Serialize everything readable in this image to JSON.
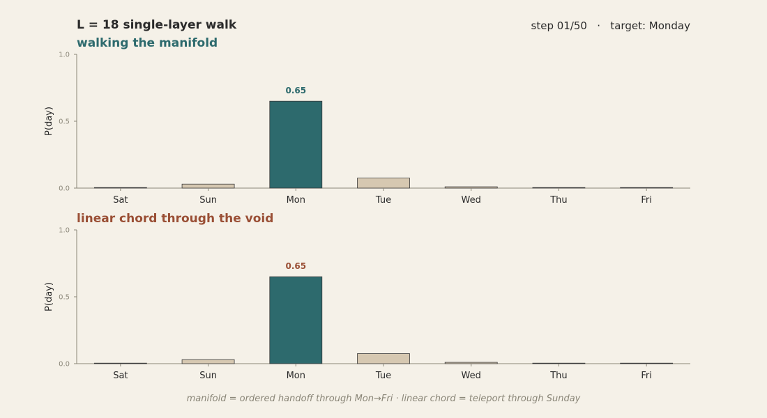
{
  "header": {
    "title": "L = 18 single-layer walk",
    "status": "step 01/50   ·   target: Monday"
  },
  "colors": {
    "background": "#f5f1e8",
    "highlight_bar": "#2d6a6d",
    "normal_bar": "#d6c8b1",
    "panel1_title": "#2d6a6d",
    "panel2_title": "#9a4f35",
    "axis": "#8a8678"
  },
  "footnote": "manifold = ordered handoff through Mon→Fri  ·  linear chord = teleport through Sunday",
  "chart_data": [
    {
      "type": "bar",
      "title": "walking the manifold",
      "ylabel": "P(day)",
      "ylim": [
        0,
        1
      ],
      "yticks": [
        "0.0",
        "0.5",
        "1.0"
      ],
      "categories": [
        "Sat",
        "Sun",
        "Mon",
        "Tue",
        "Wed",
        "Thu",
        "Fri"
      ],
      "values": [
        0.004,
        0.03,
        0.65,
        0.075,
        0.01,
        0.004,
        0.004
      ],
      "highlight": "Mon",
      "value_label": "0.65",
      "value_label_color": "#2d6a6d",
      "title_color": "#2d6a6d"
    },
    {
      "type": "bar",
      "title": "linear chord through the void",
      "ylabel": "P(day)",
      "ylim": [
        0,
        1
      ],
      "yticks": [
        "0.0",
        "0.5",
        "1.0"
      ],
      "categories": [
        "Sat",
        "Sun",
        "Mon",
        "Tue",
        "Wed",
        "Thu",
        "Fri"
      ],
      "values": [
        0.004,
        0.03,
        0.65,
        0.075,
        0.01,
        0.004,
        0.004
      ],
      "highlight": "Mon",
      "value_label": "0.65",
      "value_label_color": "#9a4f35",
      "title_color": "#9a4f35"
    }
  ]
}
